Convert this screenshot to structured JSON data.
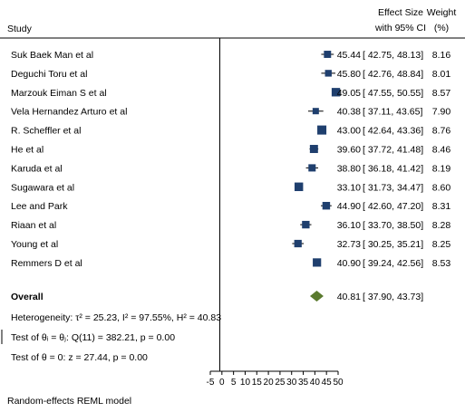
{
  "chart_data": {
    "type": "forest",
    "headers": {
      "study": "Study",
      "effect_line1": "Effect Size",
      "effect_line2": "with 95% CI",
      "weight_line1": "Weight",
      "weight_line2": "(%)"
    },
    "studies": [
      {
        "name": "Suk Baek Man et al",
        "es": 45.44,
        "lo": 42.75,
        "hi": 48.13,
        "es_text": "45.44",
        "ci_text": "[ 42.75,  48.13]",
        "weight": "8.16"
      },
      {
        "name": "Deguchi Toru et al",
        "es": 45.8,
        "lo": 42.76,
        "hi": 48.84,
        "es_text": "45.80",
        "ci_text": "[ 42.76,  48.84]",
        "weight": "8.01"
      },
      {
        "name": "Marzouk  Eiman S et al",
        "es": 49.05,
        "lo": 47.55,
        "hi": 50.55,
        "es_text": "49.05",
        "ci_text": "[ 47.55,  50.55]",
        "weight": "8.57"
      },
      {
        "name": "Vela Hernandez Arturo et al",
        "es": 40.38,
        "lo": 37.11,
        "hi": 43.65,
        "es_text": "40.38",
        "ci_text": "[ 37.11,  43.65]",
        "weight": "7.90"
      },
      {
        "name": "R. Scheffler et al",
        "es": 43.0,
        "lo": 42.64,
        "hi": 43.36,
        "es_text": "43.00",
        "ci_text": "[ 42.64,  43.36]",
        "weight": "8.76"
      },
      {
        "name": "He et al",
        "es": 39.6,
        "lo": 37.72,
        "hi": 41.48,
        "es_text": "39.60",
        "ci_text": "[ 37.72,  41.48]",
        "weight": "8.46"
      },
      {
        "name": "Karuda et al",
        "es": 38.8,
        "lo": 36.18,
        "hi": 41.42,
        "es_text": "38.80",
        "ci_text": "[ 36.18,  41.42]",
        "weight": "8.19"
      },
      {
        "name": "Sugawara et al",
        "es": 33.1,
        "lo": 31.73,
        "hi": 34.47,
        "es_text": "33.10",
        "ci_text": "[ 31.73,  34.47]",
        "weight": "8.60"
      },
      {
        "name": "Lee and Park",
        "es": 44.9,
        "lo": 42.6,
        "hi": 47.2,
        "es_text": "44.90",
        "ci_text": "[ 42.60,  47.20]",
        "weight": "8.31"
      },
      {
        "name": "Riaan et al",
        "es": 36.1,
        "lo": 33.7,
        "hi": 38.5,
        "es_text": "36.10",
        "ci_text": "[ 33.70,  38.50]",
        "weight": "8.28"
      },
      {
        "name": "Young et al",
        "es": 32.73,
        "lo": 30.25,
        "hi": 35.21,
        "es_text": "32.73",
        "ci_text": "[ 30.25,  35.21]",
        "weight": "8.25"
      },
      {
        "name": "Remmers D et al",
        "es": 40.9,
        "lo": 39.24,
        "hi": 42.56,
        "es_text": "40.90",
        "ci_text": "[ 39.24,  42.56]",
        "weight": "8.53"
      }
    ],
    "overall": {
      "name": "Overall",
      "es": 40.81,
      "lo": 37.9,
      "hi": 43.73,
      "es_text": "40.81",
      "ci_text": "[ 37.90,  43.73]"
    },
    "stats": {
      "heterogeneity": "Heterogeneity: τ² = 25.23, I² = 97.55%, H² = 40.83",
      "test_theta_i": "Test of θᵢ = θⱼ: Q(11) = 382.21, p = 0.00",
      "test_theta": "Test of θ = 0: z = 27.44, p = 0.00"
    },
    "x_ticks": [
      -5,
      0,
      5,
      10,
      15,
      20,
      25,
      30,
      35,
      40,
      45,
      50
    ],
    "xlim": [
      -5,
      50
    ],
    "model_note": "Random-effects REML model",
    "colors": {
      "marker": "#1f3f6e",
      "diamond": "#5a7a2e",
      "line": "#000000"
    }
  }
}
